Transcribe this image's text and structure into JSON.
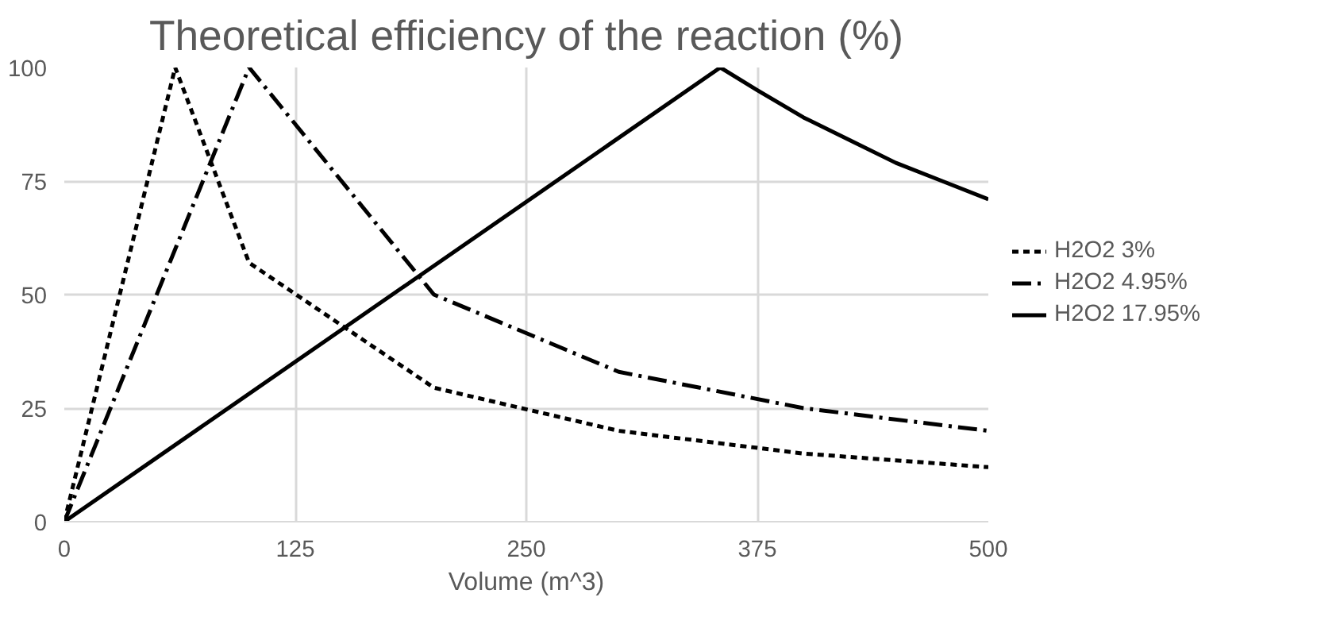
{
  "chart_data": {
    "type": "line",
    "title": "Theoretical efficiency of the reaction (%)",
    "xlabel": "Volume (m^3)",
    "xlim": [
      0,
      500
    ],
    "xticks": [
      0,
      125,
      250,
      375,
      500
    ],
    "ylim": [
      0,
      100
    ],
    "yticks": [
      0,
      25,
      50,
      75,
      100
    ],
    "grid": true,
    "legend": "right",
    "marker": "none",
    "series": [
      {
        "name": "H2O2 3%",
        "color": "#000000",
        "line_style": "dashed",
        "x": [
          0,
          60,
          100,
          200,
          300,
          400,
          500
        ],
        "values": [
          0,
          100,
          57,
          29.5,
          20,
          15,
          12
        ]
      },
      {
        "name": "H2O2 4.95%",
        "color": "#000000",
        "line_style": "dashdot",
        "x": [
          0,
          100,
          200,
          300,
          400,
          500
        ],
        "values": [
          0,
          100,
          50,
          33,
          25,
          20
        ]
      },
      {
        "name": "H2O2 17.95%",
        "color": "#000000",
        "line_style": "solid",
        "x": [
          0,
          355,
          375,
          400,
          425,
          450,
          475,
          500
        ],
        "values": [
          0,
          100,
          95,
          89,
          84,
          79,
          75,
          71
        ]
      }
    ]
  }
}
